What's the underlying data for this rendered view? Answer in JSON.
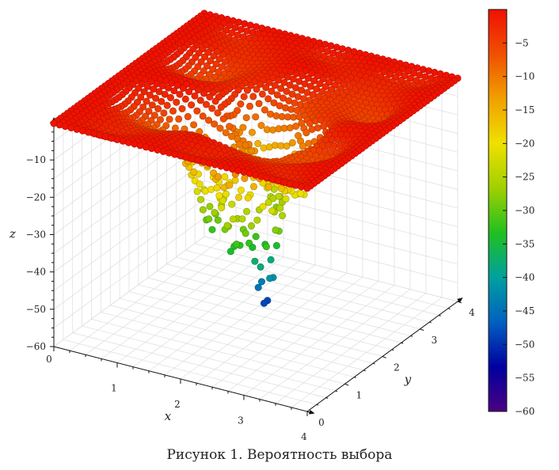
{
  "chart_data": {
    "type": "scatter3d",
    "caption": "Рисунок 1. Вероятность выбора",
    "xlabel": "x",
    "ylabel": "y",
    "zlabel": "z",
    "xlim": [
      0,
      4
    ],
    "ylim": [
      0,
      4
    ],
    "zlim": [
      -60,
      0
    ],
    "x_ticks": [
      "0",
      "1",
      "2",
      "3",
      "4"
    ],
    "y_ticks": [
      "0",
      "1",
      "2",
      "3",
      "4"
    ],
    "z_ticks": [
      "−10",
      "−20",
      "−30",
      "−40",
      "−50",
      "−60"
    ],
    "colorbar": {
      "range": [
        -60,
        0
      ],
      "ticks": [
        "−5",
        "−10",
        "−15",
        "−20",
        "−25",
        "−30",
        "−35",
        "−40",
        "−45",
        "−50",
        "−55",
        "−60"
      ],
      "colormap": [
        "#4b0082",
        "#0000a0",
        "#0060c0",
        "#00a0a0",
        "#20c020",
        "#a0d000",
        "#f0e000",
        "#f0a000",
        "#f05000",
        "#f01000"
      ]
    },
    "surface": {
      "description_values": "z ≈ −0.1 near the plateau edges; deep wells around (x,y)≈(2.5,1.5) min ≈ −53, (x,y)≈(2.2,1.2) ≈ −40, (x,y)≈(1.7,1.4) ≈ −35, (x,y)≈(2.3,2.1) ≈ −30",
      "grid_n": 44
    }
  }
}
